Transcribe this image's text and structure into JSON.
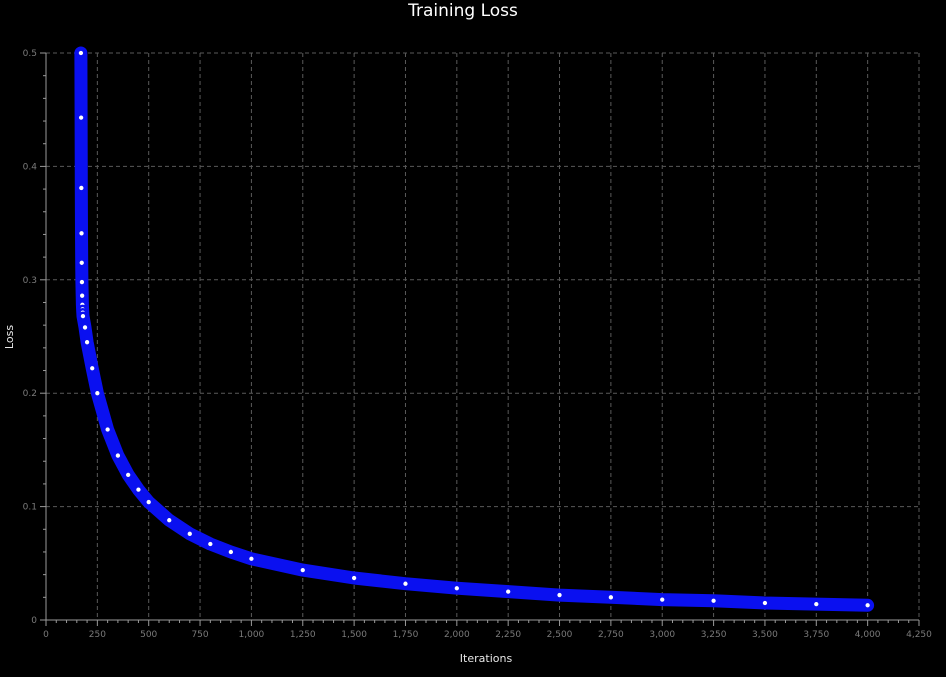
{
  "chart_data": {
    "type": "scatter",
    "title": "Training Loss",
    "xlabel": "Iterations",
    "ylabel": "Loss",
    "xlim": [
      0,
      4250
    ],
    "ylim": [
      0,
      0.5
    ],
    "grid": true,
    "legend": "none",
    "x_ticks": [
      0,
      250,
      500,
      750,
      1000,
      1250,
      1500,
      1750,
      2000,
      2250,
      2500,
      2750,
      3000,
      3250,
      3500,
      3750,
      4000,
      4250
    ],
    "x_tick_labels": [
      "0",
      "250",
      "500",
      "750",
      "1,000",
      "1,250",
      "1,500",
      "1,750",
      "2,000",
      "2,250",
      "2,500",
      "2,750",
      "3,000",
      "3,250",
      "3,500",
      "3,750",
      "4,000",
      "4,250"
    ],
    "y_ticks": [
      0,
      0.1,
      0.2,
      0.3,
      0.4,
      0.5
    ],
    "y_tick_labels": [
      "0",
      "0.1",
      "0.2",
      "0.3",
      "0.4",
      "0.5"
    ],
    "x_minor_step": 50,
    "y_minor_step": 0.02,
    "series": [
      {
        "color": "#0a10f0",
        "marker_fill": "#ffffff",
        "points": [
          {
            "x": 170,
            "y": 0.5
          },
          {
            "x": 171,
            "y": 0.443
          },
          {
            "x": 172,
            "y": 0.381
          },
          {
            "x": 173,
            "y": 0.341
          },
          {
            "x": 174,
            "y": 0.315
          },
          {
            "x": 175,
            "y": 0.298
          },
          {
            "x": 176,
            "y": 0.286
          },
          {
            "x": 177,
            "y": 0.278
          },
          {
            "x": 178,
            "y": 0.274
          },
          {
            "x": 179,
            "y": 0.271
          },
          {
            "x": 180,
            "y": 0.268
          },
          {
            "x": 190,
            "y": 0.258
          },
          {
            "x": 200,
            "y": 0.245
          },
          {
            "x": 225,
            "y": 0.222
          },
          {
            "x": 250,
            "y": 0.2
          },
          {
            "x": 300,
            "y": 0.168
          },
          {
            "x": 350,
            "y": 0.145
          },
          {
            "x": 400,
            "y": 0.128
          },
          {
            "x": 450,
            "y": 0.115
          },
          {
            "x": 500,
            "y": 0.104
          },
          {
            "x": 600,
            "y": 0.088
          },
          {
            "x": 700,
            "y": 0.076
          },
          {
            "x": 800,
            "y": 0.067
          },
          {
            "x": 900,
            "y": 0.06
          },
          {
            "x": 1000,
            "y": 0.054
          },
          {
            "x": 1250,
            "y": 0.044
          },
          {
            "x": 1500,
            "y": 0.037
          },
          {
            "x": 1750,
            "y": 0.032
          },
          {
            "x": 2000,
            "y": 0.028
          },
          {
            "x": 2250,
            "y": 0.025
          },
          {
            "x": 2500,
            "y": 0.022
          },
          {
            "x": 2750,
            "y": 0.02
          },
          {
            "x": 3000,
            "y": 0.018
          },
          {
            "x": 3250,
            "y": 0.017
          },
          {
            "x": 3500,
            "y": 0.015
          },
          {
            "x": 3750,
            "y": 0.014
          },
          {
            "x": 4000,
            "y": 0.013
          }
        ]
      }
    ]
  }
}
